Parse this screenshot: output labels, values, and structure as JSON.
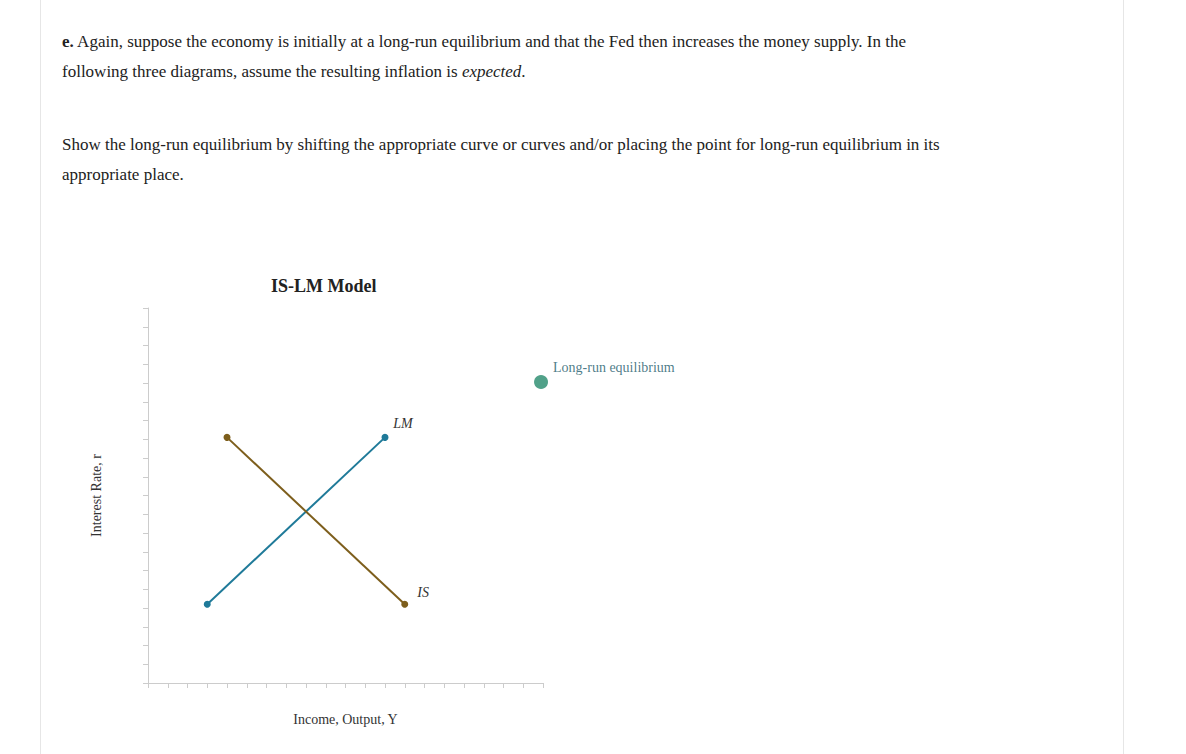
{
  "page": {
    "question": {
      "label": "e.",
      "lines": [
        [
          {
            "text": "Again, suppose the economy is initially at a long-run equilibrium and that the Fed then increases the money supply. In the"
          }
        ],
        [
          {
            "text": "following three diagrams, assume the resulting inflation is "
          },
          {
            "text": "expected",
            "italic": true
          },
          {
            "text": "."
          }
        ]
      ]
    },
    "instruction": [
      "Show the long-run equilibrium by shifting the appropriate curve or curves and/or placing the point for long-run equilibrium in its",
      "appropriate place."
    ]
  },
  "chart_data": {
    "type": "line",
    "title": "IS-LM Model",
    "xlabel": "Income, Output, Y",
    "ylabel": "Interest Rate, r",
    "xlim": [
      0,
      20
    ],
    "ylim": [
      0,
      20
    ],
    "xticks": [
      0,
      1,
      2,
      3,
      4,
      5,
      6,
      7,
      8,
      9,
      10,
      11,
      12,
      13,
      14,
      15,
      16,
      17,
      18,
      19,
      20
    ],
    "yticks": [
      0,
      1,
      2,
      3,
      4,
      5,
      6,
      7,
      8,
      9,
      10,
      11,
      12,
      13,
      14,
      15,
      16,
      17,
      18,
      19,
      20
    ],
    "tick_labels": false,
    "grid": false,
    "series": [
      {
        "name": "LM",
        "type": "line",
        "color": "#1f7a99",
        "marker": "circle",
        "x": [
          3,
          12
        ],
        "values": [
          4.2,
          13.1
        ]
      },
      {
        "name": "IS",
        "type": "line",
        "color": "#7d5e1c",
        "marker": "circle",
        "x": [
          4,
          13
        ],
        "values": [
          13.1,
          4.2
        ]
      },
      {
        "name": "Long-run equilibrium",
        "type": "scatter",
        "color": "#268a6b",
        "marker": "circle",
        "x": [
          19.9
        ],
        "values": [
          16.05
        ]
      }
    ]
  }
}
